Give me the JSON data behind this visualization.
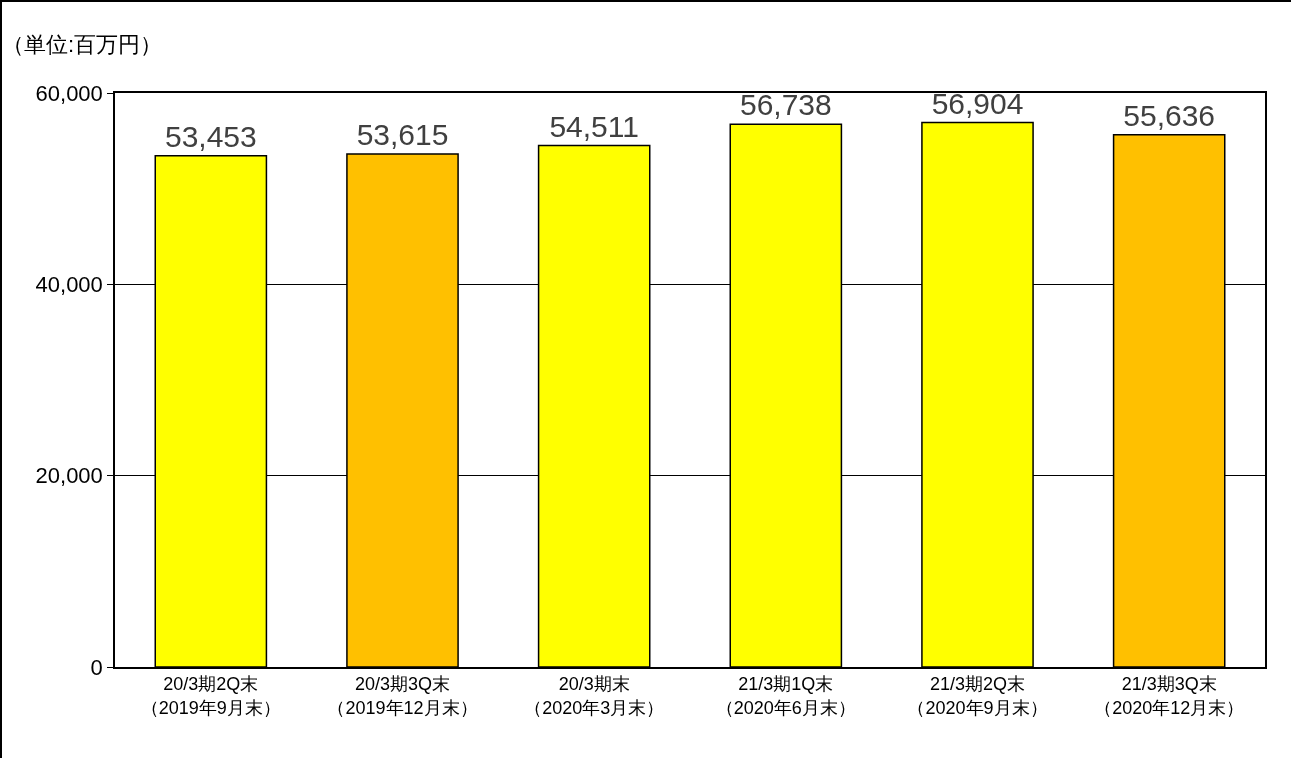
{
  "chart_data": {
    "type": "bar",
    "ylabel": "（単位:百万円）",
    "categories": [
      "20/3期2Q末（2019年9月末）",
      "20/3期3Q末（2019年12月末）",
      "20/3期末（2020年3月末）",
      "21/3期1Q末（2020年6月末）",
      "21/3期2Q末（2020年9月末）",
      "21/3期3Q末（2020年12月末）"
    ],
    "values": [
      53453,
      53615,
      54511,
      56738,
      56904,
      55636
    ],
    "value_labels": [
      "53,453",
      "53,615",
      "54,511",
      "56,738",
      "56,904",
      "55,636"
    ],
    "colors": [
      "#ffff00",
      "#ffc000",
      "#ffff00",
      "#ffff00",
      "#ffff00",
      "#ffc000"
    ],
    "ylim": [
      0,
      60000
    ],
    "yticks": [
      {
        "value": 0,
        "label": "0"
      },
      {
        "value": 20000,
        "label": "20,000"
      },
      {
        "value": 40000,
        "label": "40,000"
      },
      {
        "value": 60000,
        "label": "60,000"
      }
    ],
    "grid": "y",
    "legend": false
  }
}
